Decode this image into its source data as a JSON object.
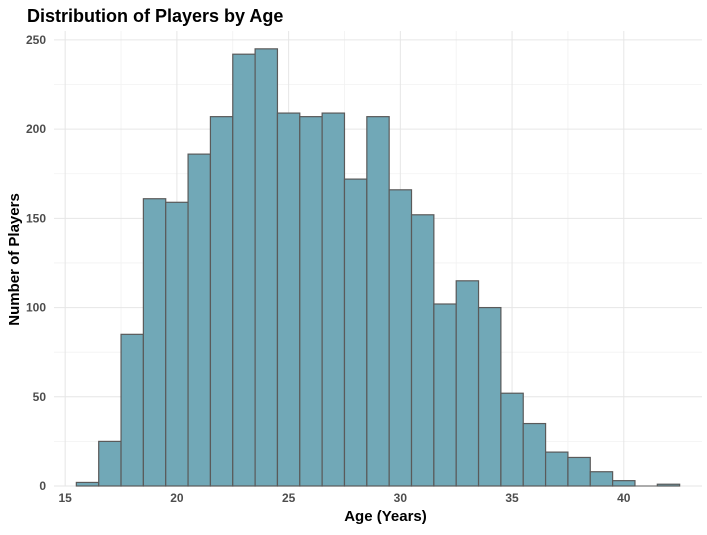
{
  "chart_data": {
    "type": "bar",
    "title": "Distribution of Players by Age",
    "xlabel": "Age (Years)",
    "ylabel": "Number of Players",
    "xlim": [
      14.5,
      43.5
    ],
    "ylim": [
      0,
      255
    ],
    "x_ticks": [
      15,
      20,
      25,
      30,
      35,
      40
    ],
    "y_ticks": [
      0,
      50,
      100,
      150,
      200,
      250
    ],
    "grid": true,
    "bin_width": 1,
    "bins": [
      {
        "x0": 15.5,
        "x1": 16.5,
        "count": 2
      },
      {
        "x0": 16.5,
        "x1": 17.5,
        "count": 25
      },
      {
        "x0": 17.5,
        "x1": 18.5,
        "count": 85
      },
      {
        "x0": 18.5,
        "x1": 19.5,
        "count": 161
      },
      {
        "x0": 19.5,
        "x1": 20.5,
        "count": 159
      },
      {
        "x0": 20.5,
        "x1": 21.5,
        "count": 186
      },
      {
        "x0": 21.5,
        "x1": 22.5,
        "count": 207
      },
      {
        "x0": 22.5,
        "x1": 23.5,
        "count": 242
      },
      {
        "x0": 23.5,
        "x1": 24.5,
        "count": 245
      },
      {
        "x0": 24.5,
        "x1": 25.5,
        "count": 209
      },
      {
        "x0": 25.5,
        "x1": 26.5,
        "count": 207
      },
      {
        "x0": 26.5,
        "x1": 27.5,
        "count": 209
      },
      {
        "x0": 27.5,
        "x1": 28.5,
        "count": 172
      },
      {
        "x0": 28.5,
        "x1": 29.5,
        "count": 207
      },
      {
        "x0": 29.5,
        "x1": 30.5,
        "count": 166
      },
      {
        "x0": 30.5,
        "x1": 31.5,
        "count": 152
      },
      {
        "x0": 31.5,
        "x1": 32.5,
        "count": 102
      },
      {
        "x0": 32.5,
        "x1": 33.5,
        "count": 115
      },
      {
        "x0": 33.5,
        "x1": 34.5,
        "count": 100
      },
      {
        "x0": 34.5,
        "x1": 35.5,
        "count": 52
      },
      {
        "x0": 35.5,
        "x1": 36.5,
        "count": 35
      },
      {
        "x0": 36.5,
        "x1": 37.5,
        "count": 19
      },
      {
        "x0": 37.5,
        "x1": 38.5,
        "count": 16
      },
      {
        "x0": 38.5,
        "x1": 39.5,
        "count": 8
      },
      {
        "x0": 39.5,
        "x1": 40.5,
        "count": 3
      },
      {
        "x0": 40.5,
        "x1": 41.5,
        "count": 0
      },
      {
        "x0": 41.5,
        "x1": 42.5,
        "count": 1
      }
    ],
    "colors": {
      "bar_fill": "#71a8b7",
      "bar_stroke": "#5a5a5a",
      "background": "#ffffff"
    }
  }
}
